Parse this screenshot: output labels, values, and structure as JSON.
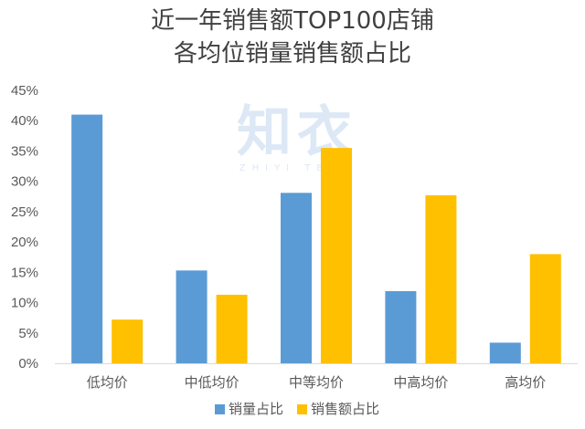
{
  "chart_data": {
    "type": "bar",
    "title_line1": "近一年销售额TOP100店铺",
    "title_line2": "各均位销量销售额占比",
    "categories": [
      "低均价",
      "中低均价",
      "中等均价",
      "中高均价",
      "高均价"
    ],
    "series": [
      {
        "name": "销量占比",
        "color": "#5B9BD5",
        "values": [
          41,
          15.3,
          28.1,
          11.9,
          3.4
        ]
      },
      {
        "name": "销售额占比",
        "color": "#FFC000",
        "values": [
          7.2,
          11.3,
          35.5,
          27.7,
          18.0
        ]
      }
    ],
    "ylim": [
      0,
      45
    ],
    "yticks": [
      "0%",
      "5%",
      "10%",
      "15%",
      "20%",
      "25%",
      "30%",
      "35%",
      "40%",
      "45%"
    ],
    "grid": false,
    "legend_position": "bottom"
  },
  "watermark": {
    "main": "知衣",
    "sub": "ZHIYI TECH"
  }
}
